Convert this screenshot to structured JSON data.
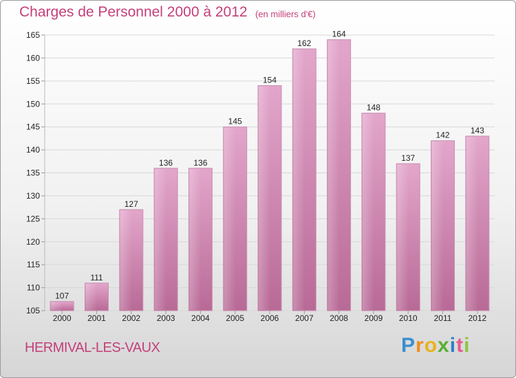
{
  "chart_data": {
    "type": "bar",
    "title": "Charges de Personnel 2000 à 2012",
    "subtitle": "(en milliers d'€)",
    "categories": [
      "2000",
      "2001",
      "2002",
      "2003",
      "2004",
      "2005",
      "2006",
      "2007",
      "2008",
      "2009",
      "2010",
      "2011",
      "2012"
    ],
    "values": [
      107,
      111,
      127,
      136,
      136,
      145,
      154,
      162,
      164,
      148,
      137,
      142,
      143
    ],
    "ylim": [
      105,
      165
    ],
    "yticks": [
      105,
      110,
      115,
      120,
      125,
      130,
      135,
      140,
      145,
      150,
      155,
      160,
      165
    ],
    "grid": true,
    "bar_color": "#d986b4"
  },
  "commune": "HERMIVAL-LES-VAUX",
  "brand": {
    "letters": [
      "P",
      "r",
      "o",
      "x",
      "i",
      "t",
      "i"
    ]
  },
  "colors": {
    "accent": "#c43f7a",
    "bar_light": "#e3a6cb",
    "bar_dark": "#b86a96"
  }
}
